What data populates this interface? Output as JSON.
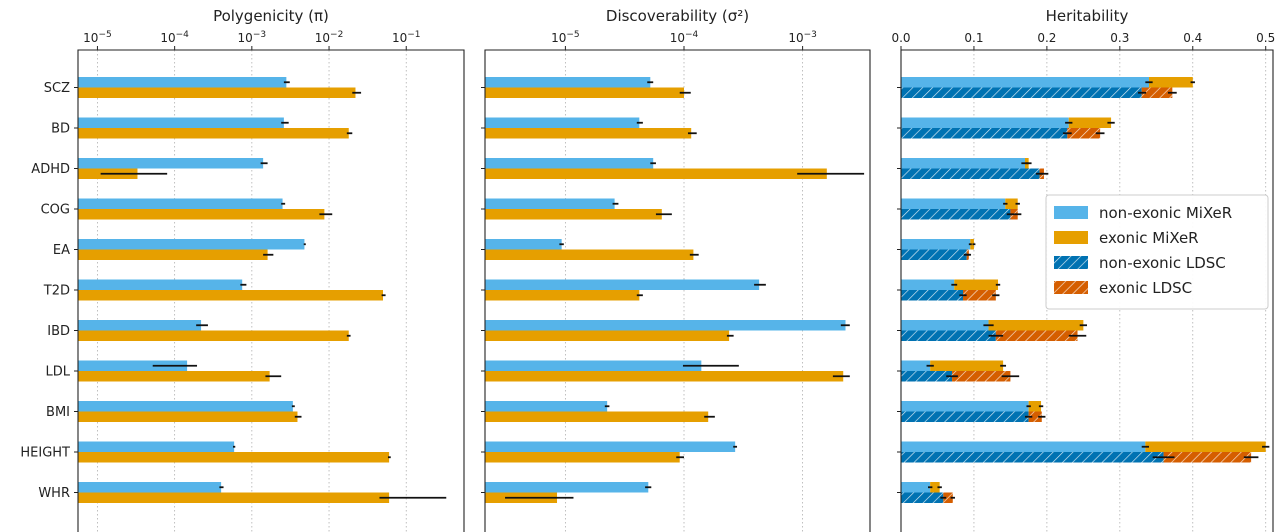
{
  "colors": {
    "non_exonic_mixer": "#56b4e9",
    "exonic_mixer": "#e69f00",
    "non_exonic_ldsc": "#0072b2",
    "exonic_ldsc": "#d55e00",
    "error_bar": "#111111"
  },
  "chart_data": [
    {
      "type": "bar",
      "orientation": "horizontal",
      "title": "Polygenicity (π)",
      "x_scale": "log",
      "xlim": [
        5.6e-06,
        0.56
      ],
      "x_ticks": [
        1e-05,
        0.0001,
        0.001,
        0.01,
        0.1
      ],
      "x_tick_labels": [
        {
          "base": "10",
          "exp": "−5"
        },
        {
          "base": "10",
          "exp": "−4"
        },
        {
          "base": "10",
          "exp": "−3"
        },
        {
          "base": "10",
          "exp": "−2"
        },
        {
          "base": "10",
          "exp": "−1"
        }
      ],
      "categories": [
        "SCZ",
        "BD",
        "ADHD",
        "COG",
        "EA",
        "T2D",
        "IBD",
        "LDL",
        "BMI",
        "HEIGHT",
        "WHR"
      ],
      "grid": "vertical dotted",
      "series": [
        {
          "name": "non-exonic MiXeR",
          "values": [
            0.0028,
            0.0026,
            0.0014,
            0.0025,
            0.0048,
            0.00075,
            0.00022,
            0.000145,
            0.0034,
            0.00059,
            0.0004
          ],
          "err_low": [
            0.0026,
            0.0024,
            0.0013,
            0.0024,
            0.0047,
            0.00071,
            0.00019,
            5.2e-05,
            0.0033,
            0.00057,
            0.00038
          ],
          "err_high": [
            0.0031,
            0.003,
            0.0016,
            0.0027,
            0.005,
            0.00085,
            0.00027,
            0.000195,
            0.0036,
            0.00061,
            0.00043
          ]
        },
        {
          "name": "exonic MiXeR",
          "values": [
            0.022,
            0.018,
            3.3e-05,
            0.0087,
            0.0016,
            0.05,
            0.018,
            0.0017,
            0.0039,
            0.06,
            0.06
          ],
          "err_low": [
            0.02,
            0.017,
            1.1e-05,
            0.0075,
            0.0014,
            0.048,
            0.017,
            0.0015,
            0.0036,
            0.058,
            0.045
          ],
          "err_high": [
            0.026,
            0.02,
            8e-05,
            0.011,
            0.0019,
            0.054,
            0.019,
            0.0024,
            0.0044,
            0.063,
            0.33
          ]
        }
      ]
    },
    {
      "type": "bar",
      "orientation": "horizontal",
      "title": "Discoverability (σ²)",
      "x_scale": "log",
      "xlim": [
        2.1e-06,
        0.0037
      ],
      "x_ticks": [
        1e-05,
        0.0001,
        0.001
      ],
      "x_tick_labels": [
        {
          "base": "10",
          "exp": "−5"
        },
        {
          "base": "10",
          "exp": "−4"
        },
        {
          "base": "10",
          "exp": "−3"
        }
      ],
      "categories": [
        "SCZ",
        "BD",
        "ADHD",
        "COG",
        "EA",
        "T2D",
        "IBD",
        "LDL",
        "BMI",
        "HEIGHT",
        "WHR"
      ],
      "grid": "vertical dotted",
      "series": [
        {
          "name": "non-exonic MiXeR",
          "values": [
            5.2e-05,
            4.2e-05,
            5.5e-05,
            2.6e-05,
            9.3e-06,
            0.00043,
            0.0023,
            0.00014,
            2.25e-05,
            0.00027,
            5e-05
          ],
          "err_low": [
            4.9e-05,
            4e-05,
            5.2e-05,
            2.5e-05,
            8.9e-06,
            0.00039,
            0.0021,
            9.8e-05,
            2.15e-05,
            0.00026,
            4.7e-05
          ],
          "err_high": [
            5.5e-05,
            4.5e-05,
            5.8e-05,
            2.8e-05,
            9.7e-06,
            0.00049,
            0.0025,
            0.00029,
            2.35e-05,
            0.00028,
            5.3e-05
          ]
        },
        {
          "name": "exonic MiXeR",
          "values": [
            0.0001,
            0.000115,
            0.0016,
            6.5e-05,
            0.00012,
            4.2e-05,
            0.00024,
            0.0022,
            0.00016,
            9.2e-05,
            8.5e-06
          ],
          "err_low": [
            9.2e-05,
            0.000108,
            0.0009,
            5.8e-05,
            0.000112,
            4e-05,
            0.00023,
            0.0018,
            0.000148,
            8.6e-05,
            3.1e-06
          ],
          "err_high": [
            0.000114,
            0.000128,
            0.0033,
            7.9e-05,
            0.000133,
            4.5e-05,
            0.000262,
            0.0025,
            0.000182,
            0.0001,
            1.17e-05
          ]
        }
      ]
    },
    {
      "type": "bar",
      "orientation": "horizontal",
      "title": "Heritability",
      "x_scale": "linear",
      "xlim": [
        0.0,
        0.51
      ],
      "x_ticks": [
        0.0,
        0.1,
        0.2,
        0.3,
        0.4,
        0.5
      ],
      "x_tick_labels": [
        "0.0",
        "0.1",
        "0.2",
        "0.3",
        "0.4",
        "0.5"
      ],
      "categories": [
        "SCZ",
        "BD",
        "ADHD",
        "COG",
        "EA",
        "T2D",
        "IBD",
        "LDL",
        "BMI",
        "HEIGHT",
        "WHR"
      ],
      "grid": "vertical dotted",
      "note": "bars are stacked: exonic component stacked after non-exonic component; MiXeR on upper half of each category, LDSC (hatched) on lower half",
      "series": [
        {
          "name": "non-exonic MiXeR",
          "values": [
            0.34,
            0.23,
            0.17,
            0.143,
            0.095,
            0.073,
            0.12,
            0.04,
            0.175,
            0.335,
            0.04
          ],
          "err_low": [
            0.335,
            0.225,
            0.165,
            0.14,
            0.093,
            0.069,
            0.113,
            0.035,
            0.172,
            0.33,
            0.037
          ],
          "err_high": [
            0.345,
            0.235,
            0.175,
            0.146,
            0.097,
            0.077,
            0.127,
            0.045,
            0.178,
            0.34,
            0.043
          ]
        },
        {
          "name": "exonic MiXeR",
          "values": [
            0.06,
            0.058,
            0.005,
            0.017,
            0.005,
            0.06,
            0.13,
            0.1,
            0.017,
            0.165,
            0.013
          ],
          "err_low": [
            0.397,
            0.283,
            0.171,
            0.157,
            0.098,
            0.13,
            0.245,
            0.136,
            0.189,
            0.495,
            0.05
          ],
          "err_high": [
            0.403,
            0.293,
            0.179,
            0.163,
            0.102,
            0.136,
            0.255,
            0.144,
            0.195,
            0.505,
            0.056
          ]
        },
        {
          "name": "non-exonic LDSC",
          "values": [
            0.33,
            0.228,
            0.19,
            0.15,
            0.09,
            0.085,
            0.13,
            0.07,
            0.175,
            0.36,
            0.058
          ],
          "err_low": [
            0.325,
            0.222,
            0.185,
            0.145,
            0.086,
            0.08,
            0.12,
            0.062,
            0.17,
            0.345,
            0.054
          ],
          "err_high": [
            0.336,
            0.234,
            0.195,
            0.155,
            0.094,
            0.09,
            0.14,
            0.078,
            0.18,
            0.375,
            0.062
          ]
        },
        {
          "name": "exonic LDSC",
          "values": [
            0.042,
            0.045,
            0.006,
            0.01,
            0.003,
            0.045,
            0.112,
            0.08,
            0.018,
            0.12,
            0.013
          ],
          "err_low": [
            0.366,
            0.267,
            0.19,
            0.155,
            0.09,
            0.125,
            0.23,
            0.138,
            0.188,
            0.47,
            0.068
          ],
          "err_high": [
            0.378,
            0.279,
            0.202,
            0.165,
            0.096,
            0.135,
            0.254,
            0.162,
            0.198,
            0.49,
            0.074
          ]
        }
      ],
      "legend": {
        "placement": "right",
        "entries": [
          {
            "label": "non-exonic MiXeR",
            "color": "#56b4e9",
            "hatched": false
          },
          {
            "label": "exonic MiXeR",
            "color": "#e69f00",
            "hatched": false
          },
          {
            "label": "non-exonic LDSC",
            "color": "#0072b2",
            "hatched": true
          },
          {
            "label": "exonic LDSC",
            "color": "#d55e00",
            "hatched": true
          }
        ]
      }
    }
  ]
}
